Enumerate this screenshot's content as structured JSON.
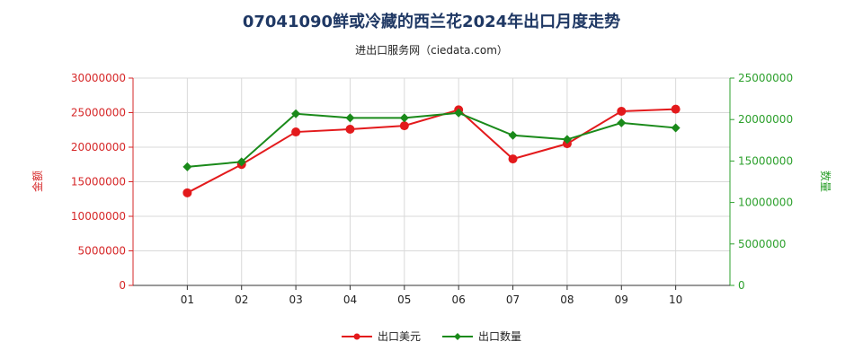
{
  "chart_data": {
    "type": "line",
    "title": "07041090鲜或冷藏的西兰花2024年出口月度走势",
    "subtitle": "进出口服务网（ciedata.com）",
    "categories": [
      "01",
      "02",
      "03",
      "04",
      "05",
      "06",
      "07",
      "08",
      "09",
      "10"
    ],
    "series": [
      {
        "name": "出口美元",
        "axis": "left",
        "color": "#e31a1c",
        "marker": "circle",
        "values": [
          13400000,
          17500000,
          22200000,
          22600000,
          23100000,
          25400000,
          18300000,
          20500000,
          25200000,
          25500000
        ]
      },
      {
        "name": "出口数量",
        "axis": "right",
        "color": "#1a8a1a",
        "marker": "diamond",
        "values": [
          14300000,
          14900000,
          20700000,
          20200000,
          20200000,
          20800000,
          18100000,
          17600000,
          19600000,
          19000000
        ]
      }
    ],
    "y_left": {
      "label": "金额",
      "color": "#d62728",
      "range": [
        0,
        30000000
      ],
      "ticks": [
        "0",
        "5000000",
        "10000000",
        "15000000",
        "20000000",
        "25000000",
        "30000000"
      ]
    },
    "y_right": {
      "label": "数量",
      "color": "#2ca02c",
      "range": [
        0,
        25000000
      ],
      "ticks": [
        "0",
        "5000000",
        "10000000",
        "15000000",
        "20000000",
        "25000000"
      ]
    },
    "grid": true,
    "legend": "bottom-center"
  }
}
